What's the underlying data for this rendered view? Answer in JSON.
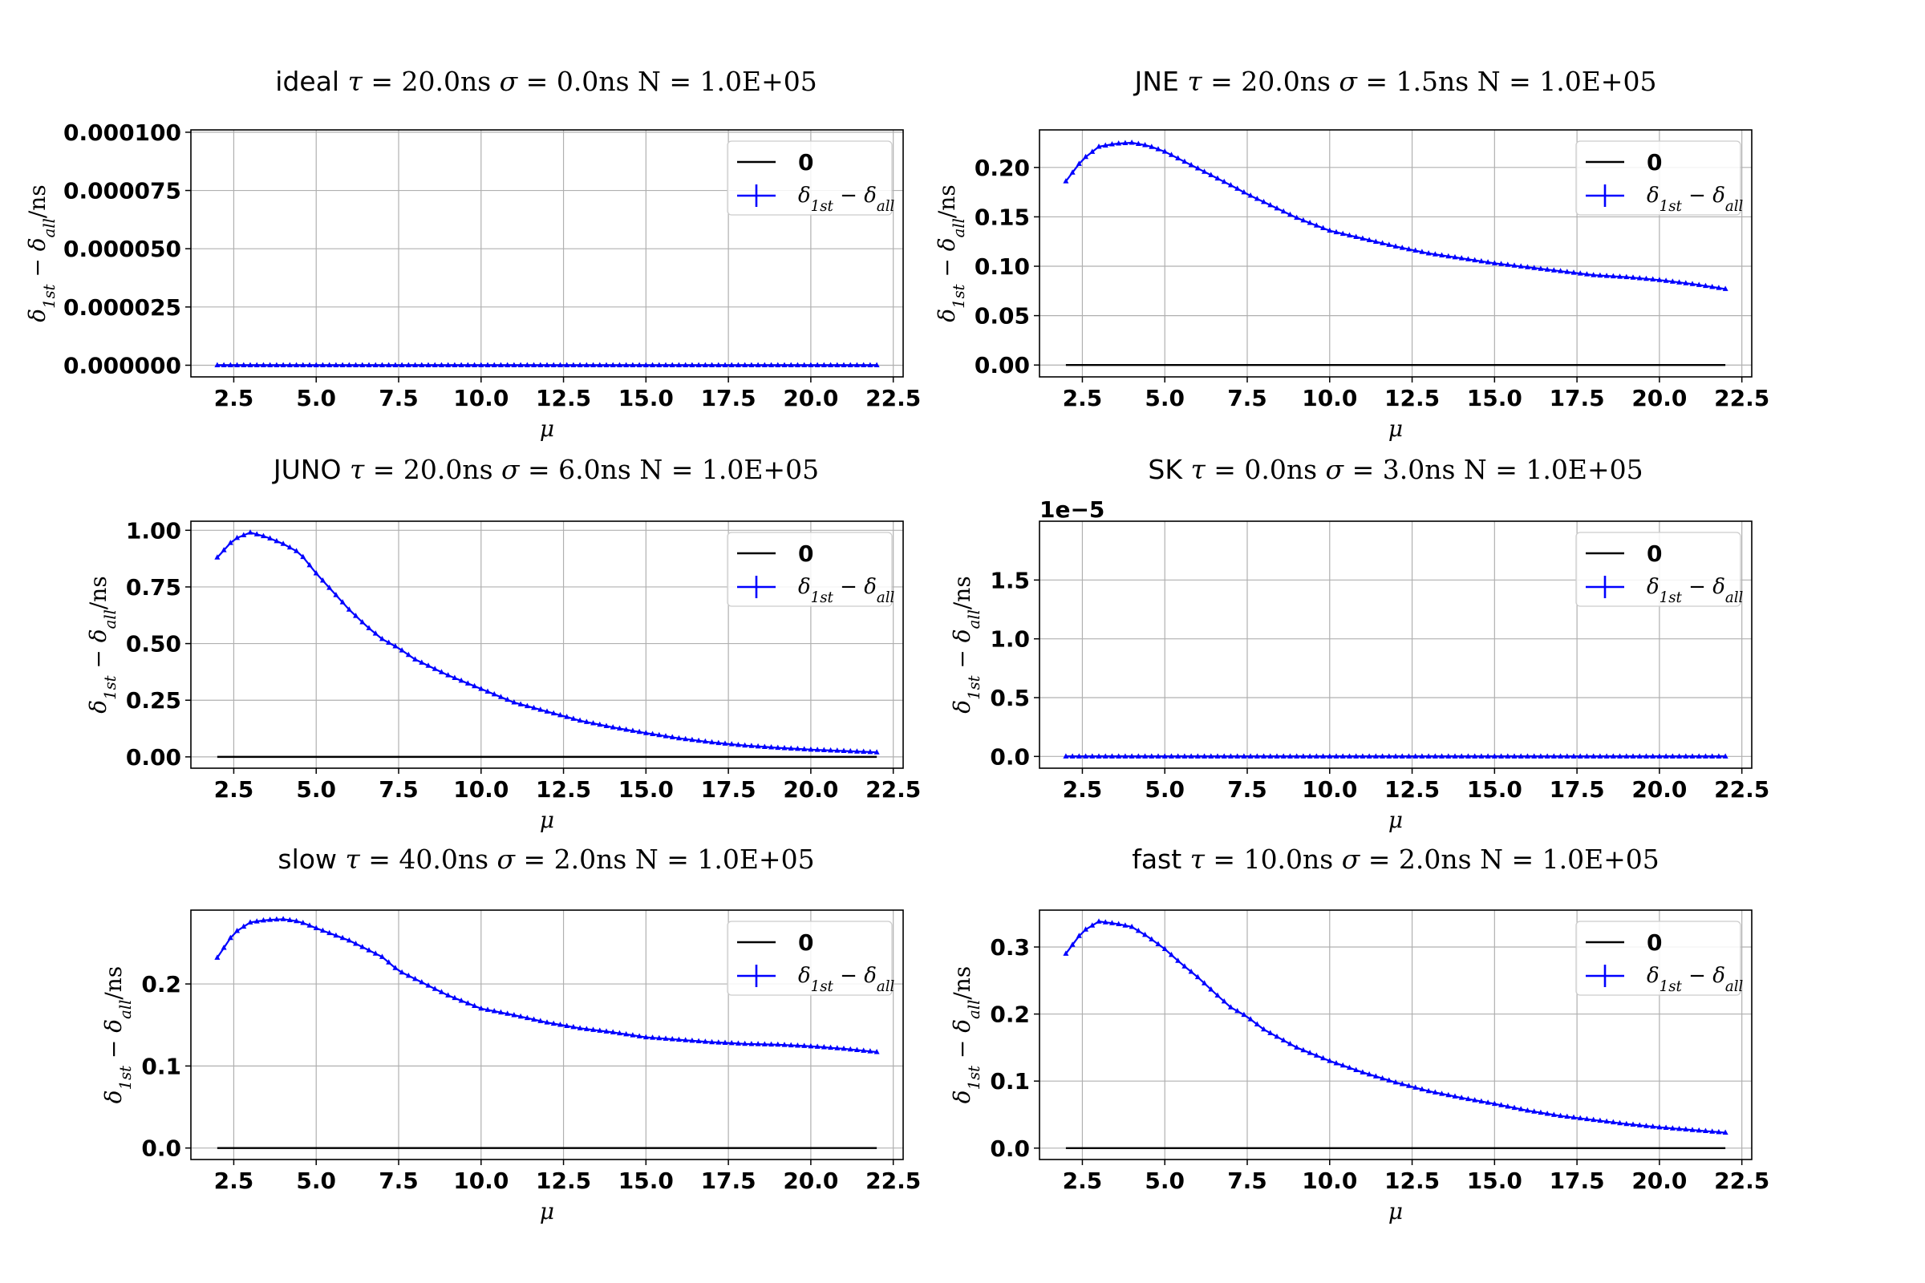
{
  "chart_data": [
    {
      "type": "line",
      "title_name": "ideal",
      "title_params": [
        [
          "τ",
          "20.0"
        ],
        [
          "σ",
          "0.0"
        ]
      ],
      "title_n": "N = 1.0E+05",
      "xlabel": "μ",
      "ylabel": "δ1st − δall/ns",
      "xlim": [
        1.2,
        22.8
      ],
      "ylim": [
        -5e-06,
        0.000101
      ],
      "xticks": [
        2.5,
        5.0,
        7.5,
        10.0,
        12.5,
        15.0,
        17.5,
        20.0,
        22.5
      ],
      "xtick_labels": [
        "2.5",
        "5.0",
        "7.5",
        "10.0",
        "12.5",
        "15.0",
        "17.5",
        "20.0",
        "22.5"
      ],
      "yticks": [
        0.0,
        2.5e-05,
        5e-05,
        7.5e-05,
        0.0001
      ],
      "ytick_labels": [
        "0.000000",
        "0.000025",
        "0.000050",
        "0.000075",
        "0.000100"
      ],
      "offset_label": "",
      "legend": [
        "0",
        "δ1st − δall"
      ],
      "legend_loc": "upper right",
      "grid": true,
      "series": [
        {
          "name": "0",
          "color": "#000000",
          "x": [
            2,
            22
          ],
          "y": [
            0,
            0
          ]
        },
        {
          "name": "δ1st − δall",
          "color": "#0000ff",
          "marker": "triangle",
          "model": "zero",
          "x_start": 2,
          "x_end": 22,
          "x_step": 0.2,
          "x": [
            2,
            22
          ],
          "y": [
            0,
            0
          ]
        }
      ]
    },
    {
      "type": "line",
      "title_name": "JNE",
      "title_params": [
        [
          "τ",
          "20.0"
        ],
        [
          "σ",
          "1.5"
        ]
      ],
      "title_n": "N = 1.0E+05",
      "xlabel": "μ",
      "ylabel": "δ1st − δall/ns",
      "xlim": [
        1.2,
        22.8
      ],
      "ylim": [
        -0.012,
        0.238
      ],
      "xticks": [
        2.5,
        5.0,
        7.5,
        10.0,
        12.5,
        15.0,
        17.5,
        20.0,
        22.5
      ],
      "xtick_labels": [
        "2.5",
        "5.0",
        "7.5",
        "10.0",
        "12.5",
        "15.0",
        "17.5",
        "20.0",
        "22.5"
      ],
      "yticks": [
        0.0,
        0.05,
        0.1,
        0.15,
        0.2
      ],
      "ytick_labels": [
        "0.00",
        "0.05",
        "0.10",
        "0.15",
        "0.20"
      ],
      "offset_label": "",
      "legend": [
        "0",
        "δ1st − δall"
      ],
      "legend_loc": "upper right",
      "grid": true,
      "series": [
        {
          "name": "0",
          "color": "#000000",
          "x": [
            2,
            22
          ],
          "y": [
            0,
            0
          ]
        },
        {
          "name": "δ1st − δall",
          "color": "#0000ff",
          "marker": "triangle",
          "model": "interp",
          "x_start": 2,
          "x_end": 22,
          "x_step": 0.2,
          "x": [
            2,
            2.5,
            3,
            3.5,
            4,
            4.5,
            5,
            6,
            7,
            7.5,
            8,
            9,
            10,
            11,
            12,
            13,
            14,
            15,
            16,
            17,
            18,
            19,
            20,
            21,
            22
          ],
          "y": [
            0.186,
            0.208,
            0.221,
            0.224,
            0.225,
            0.222,
            0.216,
            0.199,
            0.182,
            0.173,
            0.165,
            0.149,
            0.136,
            0.128,
            0.12,
            0.113,
            0.108,
            0.103,
            0.099,
            0.095,
            0.091,
            0.089,
            0.086,
            0.082,
            0.077
          ]
        }
      ]
    },
    {
      "type": "line",
      "title_name": "JUNO",
      "title_params": [
        [
          "τ",
          "20.0"
        ],
        [
          "σ",
          "6.0"
        ]
      ],
      "title_n": "N = 1.0E+05",
      "xlabel": "μ",
      "ylabel": "δ1st − δall/ns",
      "xlim": [
        1.2,
        22.8
      ],
      "ylim": [
        -0.05,
        1.04
      ],
      "xticks": [
        2.5,
        5.0,
        7.5,
        10.0,
        12.5,
        15.0,
        17.5,
        20.0,
        22.5
      ],
      "xtick_labels": [
        "2.5",
        "5.0",
        "7.5",
        "10.0",
        "12.5",
        "15.0",
        "17.5",
        "20.0",
        "22.5"
      ],
      "yticks": [
        0.0,
        0.25,
        0.5,
        0.75,
        1.0
      ],
      "ytick_labels": [
        "0.00",
        "0.25",
        "0.50",
        "0.75",
        "1.00"
      ],
      "offset_label": "",
      "legend": [
        "0",
        "δ1st − δall"
      ],
      "legend_loc": "upper right",
      "grid": true,
      "series": [
        {
          "name": "0",
          "color": "#000000",
          "x": [
            2,
            22
          ],
          "y": [
            0,
            0
          ]
        },
        {
          "name": "δ1st − δall",
          "color": "#0000ff",
          "marker": "triangle",
          "model": "interp",
          "x_start": 2,
          "x_end": 22,
          "x_step": 0.2,
          "x": [
            2,
            2.5,
            3,
            3.5,
            4,
            4.5,
            5,
            5.5,
            6,
            6.5,
            7,
            7.5,
            8,
            9,
            10,
            11,
            12,
            13,
            14,
            15,
            16,
            17,
            18,
            19,
            20,
            21,
            22
          ],
          "y": [
            0.88,
            0.96,
            0.99,
            0.97,
            0.94,
            0.9,
            0.81,
            0.73,
            0.65,
            0.58,
            0.52,
            0.48,
            0.43,
            0.36,
            0.3,
            0.24,
            0.2,
            0.16,
            0.13,
            0.105,
            0.082,
            0.064,
            0.05,
            0.04,
            0.032,
            0.026,
            0.02
          ]
        }
      ]
    },
    {
      "type": "line",
      "title_name": "SK",
      "title_params": [
        [
          "τ",
          "0.0"
        ],
        [
          "σ",
          "3.0"
        ]
      ],
      "title_n": "N = 1.0E+05",
      "xlabel": "μ",
      "ylabel": "δ1st − δall/ns",
      "xlim": [
        1.2,
        22.8
      ],
      "ylim": [
        -0.1,
        2.0
      ],
      "xticks": [
        2.5,
        5.0,
        7.5,
        10.0,
        12.5,
        15.0,
        17.5,
        20.0,
        22.5
      ],
      "xtick_labels": [
        "2.5",
        "5.0",
        "7.5",
        "10.0",
        "12.5",
        "15.0",
        "17.5",
        "20.0",
        "22.5"
      ],
      "yticks": [
        0.0,
        0.5,
        1.0,
        1.5
      ],
      "ytick_labels": [
        "0.0",
        "0.5",
        "1.0",
        "1.5"
      ],
      "offset_label": "1e−5",
      "legend": [
        "0",
        "δ1st − δall"
      ],
      "legend_loc": "upper right",
      "grid": true,
      "series": [
        {
          "name": "0",
          "color": "#000000",
          "x": [
            2,
            22
          ],
          "y": [
            0,
            0
          ]
        },
        {
          "name": "δ1st − δall",
          "color": "#0000ff",
          "marker": "triangle",
          "model": "zero",
          "x_start": 2,
          "x_end": 22,
          "x_step": 0.2,
          "x": [
            2,
            22
          ],
          "y": [
            0,
            0
          ]
        }
      ]
    },
    {
      "type": "line",
      "title_name": "slow",
      "title_params": [
        [
          "τ",
          "40.0"
        ],
        [
          "σ",
          "2.0"
        ]
      ],
      "title_n": "N = 1.0E+05",
      "xlabel": "μ",
      "ylabel": "δ1st − δall/ns",
      "xlim": [
        1.2,
        22.8
      ],
      "ylim": [
        -0.014,
        0.29
      ],
      "xticks": [
        2.5,
        5.0,
        7.5,
        10.0,
        12.5,
        15.0,
        17.5,
        20.0,
        22.5
      ],
      "xtick_labels": [
        "2.5",
        "5.0",
        "7.5",
        "10.0",
        "12.5",
        "15.0",
        "17.5",
        "20.0",
        "22.5"
      ],
      "yticks": [
        0.0,
        0.1,
        0.2
      ],
      "ytick_labels": [
        "0.0",
        "0.1",
        "0.2"
      ],
      "offset_label": "",
      "legend": [
        "0",
        "δ1st − δall"
      ],
      "legend_loc": "upper right",
      "grid": true,
      "series": [
        {
          "name": "0",
          "color": "#000000",
          "x": [
            2,
            22
          ],
          "y": [
            0,
            0
          ]
        },
        {
          "name": "δ1st − δall",
          "color": "#0000ff",
          "marker": "triangle",
          "model": "interp",
          "x_start": 2,
          "x_end": 22,
          "x_step": 0.2,
          "x": [
            2,
            2.5,
            3,
            3.5,
            4,
            4.5,
            5,
            6,
            7,
            7.5,
            8,
            9,
            10,
            11,
            12,
            13,
            14,
            15,
            16,
            17,
            18,
            19,
            20,
            21,
            22
          ],
          "y": [
            0.232,
            0.262,
            0.275,
            0.278,
            0.279,
            0.276,
            0.268,
            0.253,
            0.233,
            0.216,
            0.206,
            0.186,
            0.17,
            0.162,
            0.153,
            0.146,
            0.141,
            0.135,
            0.132,
            0.129,
            0.127,
            0.126,
            0.124,
            0.121,
            0.117
          ]
        }
      ]
    },
    {
      "type": "line",
      "title_name": "fast",
      "title_params": [
        [
          "τ",
          "10.0"
        ],
        [
          "σ",
          "2.0"
        ]
      ],
      "title_n": "N = 1.0E+05",
      "xlabel": "μ",
      "ylabel": "δ1st − δall/ns",
      "xlim": [
        1.2,
        22.8
      ],
      "ylim": [
        -0.017,
        0.355
      ],
      "xticks": [
        2.5,
        5.0,
        7.5,
        10.0,
        12.5,
        15.0,
        17.5,
        20.0,
        22.5
      ],
      "xtick_labels": [
        "2.5",
        "5.0",
        "7.5",
        "10.0",
        "12.5",
        "15.0",
        "17.5",
        "20.0",
        "22.5"
      ],
      "yticks": [
        0.0,
        0.1,
        0.2,
        0.3
      ],
      "ytick_labels": [
        "0.0",
        "0.1",
        "0.2",
        "0.3"
      ],
      "offset_label": "",
      "legend": [
        "0",
        "δ1st − δall"
      ],
      "legend_loc": "upper right",
      "grid": true,
      "series": [
        {
          "name": "0",
          "color": "#000000",
          "x": [
            2,
            22
          ],
          "y": [
            0,
            0
          ]
        },
        {
          "name": "δ1st − δall",
          "color": "#0000ff",
          "marker": "triangle",
          "model": "interp",
          "x_start": 2,
          "x_end": 22,
          "x_step": 0.2,
          "x": [
            2,
            2.5,
            3,
            3.5,
            4,
            4.5,
            5,
            5.5,
            6,
            6.5,
            7,
            7.5,
            8,
            9,
            10,
            11,
            12,
            13,
            14,
            15,
            16,
            17,
            18,
            19,
            20,
            21,
            22
          ],
          "y": [
            0.29,
            0.323,
            0.338,
            0.335,
            0.33,
            0.315,
            0.297,
            0.275,
            0.255,
            0.232,
            0.21,
            0.196,
            0.177,
            0.15,
            0.13,
            0.113,
            0.098,
            0.085,
            0.075,
            0.066,
            0.056,
            0.048,
            0.042,
            0.036,
            0.031,
            0.027,
            0.023
          ]
        }
      ]
    }
  ]
}
